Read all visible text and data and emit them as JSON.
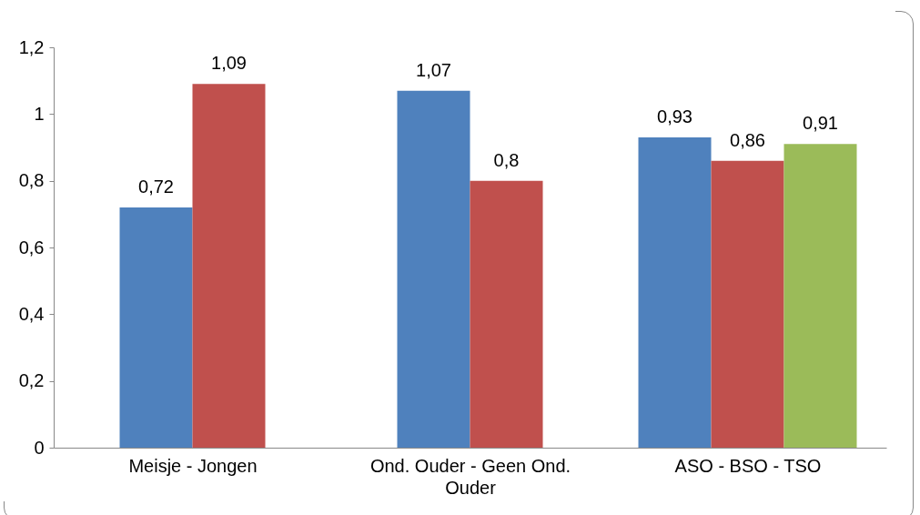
{
  "chart_data": {
    "type": "bar",
    "categories": [
      "Meisje - Jongen",
      "Ond. Ouder - Geen Ond. Ouder",
      "ASO - BSO - TSO"
    ],
    "series": [
      {
        "color": "#4f81bd",
        "values": [
          0.72,
          1.07,
          0.93
        ],
        "value_labels": [
          "0,72",
          "1,07",
          "0,93"
        ]
      },
      {
        "color": "#c0504d",
        "values": [
          1.09,
          0.8,
          0.86
        ],
        "value_labels": [
          "1,09",
          "0,8",
          "0,86"
        ]
      },
      {
        "color": "#9bbb59",
        "values": [
          null,
          null,
          0.91
        ],
        "value_labels": [
          null,
          null,
          "0,91"
        ]
      }
    ],
    "ylim": [
      0,
      1.2
    ],
    "yticks": [
      0,
      {
        "value": 0.2,
        "label": "0,2"
      },
      {
        "value": 0.4,
        "label": "0,4"
      },
      {
        "value": 0.6,
        "label": "0,6"
      },
      {
        "value": 0.8,
        "label": "0,8"
      },
      1,
      {
        "value": 1.2,
        "label": "1,2"
      }
    ],
    "grid": false,
    "legend": false
  }
}
